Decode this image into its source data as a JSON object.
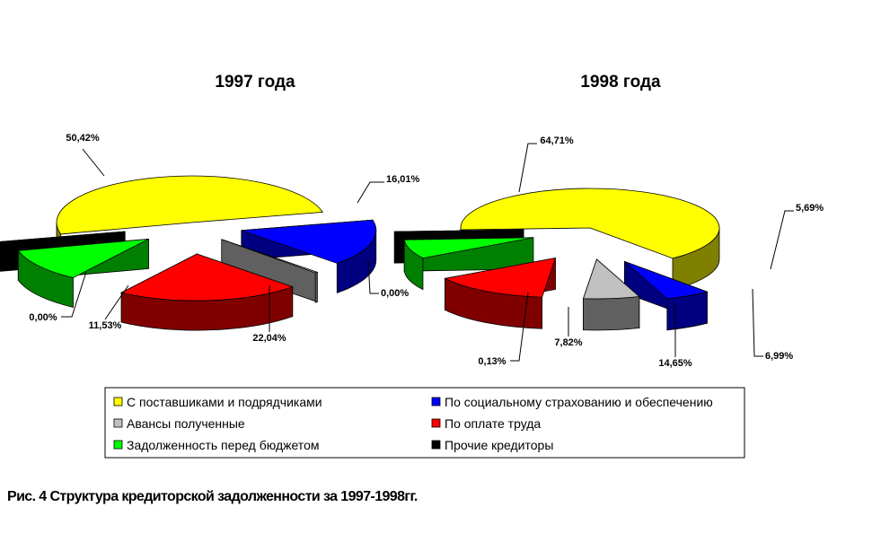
{
  "chart_data": [
    {
      "type": "pie",
      "title": "1997 года",
      "categories": [
        "С поставшиками и подрядчиками",
        "По социальному страхованию и обеспечению",
        "Авансы полученные",
        "По оплате труда",
        "Задолженность перед бюджетом",
        "Прочие кредиторы"
      ],
      "values": [
        50.42,
        16.01,
        0.0,
        22.04,
        11.53,
        0.0
      ],
      "labels": [
        "50,42%",
        "16,01%",
        "0,00%",
        "22,04%",
        "11,53%",
        "0,00%"
      ],
      "exploded": true,
      "three_d": true
    },
    {
      "type": "pie",
      "title": "1998 года",
      "categories": [
        "С поставшиками и подрядчиками",
        "По социальному страхованию и обеспечению",
        "Авансы полученные",
        "По оплате труда",
        "Задолженность перед бюджетом",
        "Прочие кредиторы"
      ],
      "values": [
        64.71,
        5.69,
        6.99,
        14.65,
        7.82,
        0.13
      ],
      "labels": [
        "64,71%",
        "5,69%",
        "6,99%",
        "14,65%",
        "7,82%",
        "0,13%"
      ],
      "exploded": true,
      "three_d": true
    }
  ],
  "legend": {
    "placement": "bottom",
    "items": [
      {
        "label": "С поставшиками и подрядчиками",
        "color": "#ffff00"
      },
      {
        "label": "По социальному страхованию и обеспечению",
        "color": "#0000ff"
      },
      {
        "label": "Авансы полученные",
        "color": "#c0c0c0"
      },
      {
        "label": "По оплате труда",
        "color": "#ff0000"
      },
      {
        "label": "Задолженность перед бюджетом",
        "color": "#00ff00"
      },
      {
        "label": "Прочие кредиторы",
        "color": "#000000"
      }
    ]
  },
  "caption": "Рис. 4 Структура кредиторской задолженности за 1997-1998гг."
}
